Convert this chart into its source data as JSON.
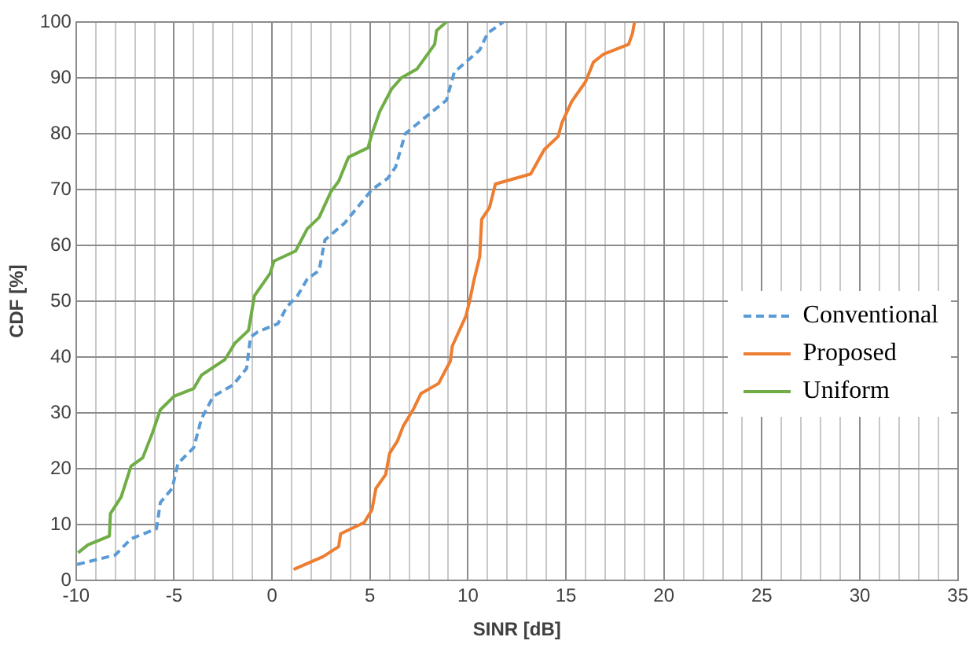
{
  "chart_data": {
    "type": "line",
    "xlabel": "SINR [dB]",
    "ylabel": "CDF [%]",
    "xlim": [
      -10,
      35
    ],
    "ylim": [
      0,
      100
    ],
    "xticks": [
      -10,
      {
        "value": -9,
        "label": null
      },
      {
        "value": -8,
        "label": null
      },
      {
        "value": -7,
        "label": null
      },
      {
        "value": -6,
        "label": null
      },
      -5,
      {
        "value": -4,
        "label": null
      },
      {
        "value": -3,
        "label": null
      },
      {
        "value": -2,
        "label": null
      },
      {
        "value": -1,
        "label": null
      },
      0,
      {
        "value": 1,
        "label": null
      },
      {
        "value": 2,
        "label": null
      },
      {
        "value": 3,
        "label": null
      },
      {
        "value": 4,
        "label": null
      },
      5,
      {
        "value": 6,
        "label": null
      },
      {
        "value": 7,
        "label": null
      },
      {
        "value": 8,
        "label": null
      },
      {
        "value": 9,
        "label": null
      },
      10,
      {
        "value": 11,
        "label": null
      },
      {
        "value": 12,
        "label": null
      },
      {
        "value": 13,
        "label": null
      },
      {
        "value": 14,
        "label": null
      },
      15,
      {
        "value": 16,
        "label": null
      },
      {
        "value": 17,
        "label": null
      },
      {
        "value": 18,
        "label": null
      },
      {
        "value": 19,
        "label": null
      },
      20,
      {
        "value": 21,
        "label": null
      },
      {
        "value": 22,
        "label": null
      },
      {
        "value": 23,
        "label": null
      },
      {
        "value": 24,
        "label": null
      },
      25,
      {
        "value": 26,
        "label": null
      },
      {
        "value": 27,
        "label": null
      },
      {
        "value": 28,
        "label": null
      },
      {
        "value": 29,
        "label": null
      },
      30,
      {
        "value": 31,
        "label": null
      },
      {
        "value": 32,
        "label": null
      },
      {
        "value": 33,
        "label": null
      },
      {
        "value": 34,
        "label": null
      },
      35
    ],
    "yticks": [
      0,
      10,
      20,
      30,
      40,
      50,
      60,
      70,
      80,
      90,
      100
    ],
    "grid": true,
    "legend": "right",
    "marker": "none",
    "series": [
      {
        "name": "Conventional",
        "color": "#5b9bd5",
        "line_style": "dashed",
        "x": [
          -9.95,
          -8,
          -7.2,
          -5.9,
          -5.7,
          -5.1,
          -4.8,
          -4,
          -3.6,
          -3,
          -2,
          -1.3,
          -1.1,
          -0.75,
          0.3,
          0.75,
          1.3,
          1.8,
          2.4,
          2.7,
          3.7,
          5.1,
          5.9,
          6.3,
          6.8,
          7.7,
          8.9,
          9.3,
          10.6,
          11,
          11.8
        ],
        "values": [
          2.9,
          4.6,
          7.5,
          9.3,
          14,
          16.5,
          21,
          23.8,
          29,
          33,
          35,
          38,
          43.6,
          44.5,
          46,
          49,
          51,
          54,
          55.5,
          61,
          64,
          70,
          72,
          74,
          80,
          82.6,
          86,
          91,
          95,
          98,
          100
        ]
      },
      {
        "name": "Proposed",
        "color": "#ed7d31",
        "line_style": "solid",
        "x": [
          1.1,
          2.6,
          3.4,
          3.5,
          4.7,
          5.1,
          5.3,
          5.8,
          6,
          6.4,
          6.7,
          7.2,
          7.6,
          8.5,
          9.1,
          9.2,
          9.9,
          10.1,
          10.3,
          10.6,
          10.7,
          11.1,
          11.4,
          13.2,
          13.9,
          14.6,
          14.8,
          15.3,
          16,
          16.4,
          16.9,
          18.2,
          18.4,
          18.5
        ],
        "values": [
          2,
          4.3,
          6.1,
          8.4,
          10.4,
          12.7,
          16.5,
          19,
          22.8,
          25,
          27.7,
          30.6,
          33.5,
          35.3,
          39.3,
          42,
          47.4,
          50.3,
          53.7,
          58,
          64.7,
          66.8,
          71,
          72.8,
          77.2,
          79.5,
          82,
          85.8,
          89.3,
          92.8,
          94.2,
          96,
          98,
          100
        ]
      },
      {
        "name": "Uniform",
        "color": "#70ad47",
        "line_style": "solid",
        "x": [
          -9.9,
          -9.4,
          -8.3,
          -8.25,
          -7.7,
          -7.2,
          -6.6,
          -6.1,
          -5.7,
          -5,
          -4,
          -3.6,
          -2.4,
          -1.9,
          -1.2,
          -0.9,
          -0.1,
          0.1,
          1.2,
          1.8,
          2.4,
          3,
          3.4,
          3.9,
          4.9,
          5.1,
          5.5,
          6.1,
          6.6,
          7.4,
          8.3,
          8.4,
          8.9
        ],
        "values": [
          5,
          6.4,
          8,
          12,
          15,
          20.5,
          22,
          26.5,
          30.6,
          33,
          34.4,
          36.8,
          39.6,
          42.5,
          44.8,
          51,
          55,
          57.2,
          59,
          63,
          65,
          69.6,
          71.5,
          75.8,
          77.5,
          80,
          84,
          88,
          90,
          91.6,
          96,
          98.5,
          100
        ]
      }
    ]
  }
}
